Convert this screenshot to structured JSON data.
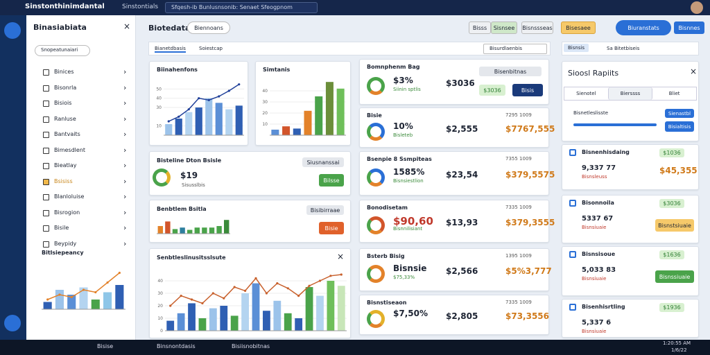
{
  "window": {
    "title": "Sinstonthinimdantal",
    "tab": "Sinstontials",
    "address": "Sfqesh-ib Bunlusnsonib: Senaet Sfeogpnom"
  },
  "sidebar": {
    "title": "Binasiabiata",
    "search": "Snopeatunaiari",
    "items": [
      "Binices",
      "Bisonrla",
      "Bisiois",
      "Ranluse",
      "Bantvaits",
      "Bimesdlent",
      "Bieatlay",
      "Bsisiss",
      "Blanloluise",
      "Bisrogion",
      "Bisile",
      "Beypidy"
    ],
    "chart_title": "Bitlsiepeancy"
  },
  "toolbar": {
    "title": "Biotedata",
    "button": "Biennoans",
    "actions": [
      "Bisss",
      "Sisnsee",
      "Bisnssseas",
      "Bisesaee",
      "Biuranstats",
      "Bisnnes"
    ]
  },
  "tabs": {
    "items": [
      "Bianetdbasis",
      "Soiestcap"
    ],
    "search": "Bisurdlaenbis"
  },
  "cards": {
    "trend": {
      "title": "Biinahenfons"
    },
    "stats": {
      "title": "Simtanis"
    },
    "baseline": {
      "title": "Bisteline Dton Bsisle",
      "value": "$19",
      "sub": "Sisusslbis",
      "button": "Siusnanssai",
      "action": "Bilsse"
    },
    "bench": {
      "title": "Benbtlem Bsitla",
      "button": "Bisibirraae",
      "action": "Bisie"
    },
    "series": {
      "title": "Senbtleslinusitsslsute"
    }
  },
  "rows": [
    {
      "name": "Bomnphenm Bag",
      "pct": "$3%",
      "sub": "Siinin sptlis",
      "tag": "Bisenbitnas",
      "amount": "$3036",
      "action": "Bisis"
    },
    {
      "name": "Bisie",
      "pct": "10%",
      "sub": "Bisleteb",
      "amount": "$2,555",
      "meta": "7295 1009",
      "total": "$7767,555"
    },
    {
      "name": "Bsenpie 8 Ssmpiteas",
      "pct": "1585%",
      "sub": "Bisnsiestlion",
      "amount": "$23,54",
      "meta": "7355 1009",
      "total": "$379,5575"
    },
    {
      "name": "Bonodisetam",
      "pct": "$90,60",
      "sub": "Bisnnilisiant",
      "amount": "$13,93",
      "meta": "7335 1009",
      "total": "$379,3555"
    },
    {
      "name": "Bsterb Bisig",
      "pct": "Bisnsie",
      "sub": "$75,33%",
      "amount": "$2,566",
      "meta": "1395 1009",
      "total": "$5%3,777"
    },
    {
      "name": "Bisnstiseaon",
      "pct": "$7,50%",
      "amount": "$2,805",
      "meta": "7335 1009",
      "total": "$73,3556"
    }
  ],
  "right": {
    "tabs": [
      "Bisnsis",
      "Sa Bitetbiseis"
    ],
    "panel_title": "Sioosl Rapiits",
    "panel_tabs": [
      "Sienotel",
      "Bierssss",
      "Bliet"
    ],
    "slider_label": "Bisnetleslisste",
    "buttons": [
      "Sienastbl",
      "Bisialtisis"
    ],
    "items": [
      {
        "name": "Bisnenhisdaing",
        "badge": "$1036",
        "value": "9,337 77",
        "sub": "Bisnsleuss",
        "total": "$45,355"
      },
      {
        "name": "Bisonnoila",
        "badge": "$3036",
        "value": "5337 67",
        "sub": "Bisnsiuaie",
        "action": "Bisnstsiuaie"
      },
      {
        "name": "Bisnsisoue",
        "badge": "$1636",
        "value": "5,033 83",
        "sub": "Bisnsiuaie",
        "action": "Bisnssiuaie"
      },
      {
        "name": "Bisenhisrtling",
        "badge": "$1936",
        "value": "5,337 6",
        "sub": "Bisnsiuaie"
      }
    ]
  },
  "taskbar": {
    "apps": [
      "Bisise",
      "Binsnontdasis",
      "Bisiisnobitnas"
    ],
    "time": "1:20:55 AM",
    "date": "1/6/22"
  },
  "charts": [
    {
      "type": "bar-line",
      "bars": [
        15,
        40,
        30,
        45,
        20,
        35,
        50
      ],
      "bar_colors": [
        "#2f5fb3",
        "#9cc3ea",
        "#5b8fd6",
        "#b4d4f0",
        "#4aa34a",
        "#8ec6e8",
        "#2f5fb3"
      ],
      "line": [
        20,
        30,
        25,
        40,
        35,
        55,
        75
      ],
      "line_color": "#e3822a",
      "ylim": [
        0,
        100
      ]
    },
    {
      "type": "bar-line",
      "bars": [
        12,
        18,
        25,
        30,
        40,
        35,
        28,
        32
      ],
      "bar_colors": [
        "#9cc3ea",
        "#2f5fb3",
        "#b4d4f0",
        "#2f5fb3",
        "#9cc3ea",
        "#5b8fd6",
        "#b4d4f0",
        "#2f5fb3"
      ],
      "line": [
        15,
        20,
        28,
        40,
        38,
        42,
        48,
        55
      ],
      "line_color": "#1f3f99",
      "ylim": [
        0,
        60
      ],
      "yticks": [
        10,
        30,
        40,
        50
      ]
    },
    {
      "type": "bar",
      "bars": [
        5,
        8,
        6,
        22,
        35,
        48,
        42
      ],
      "bar_colors": [
        "#5b8fd6",
        "#d2552b",
        "#2f5fb3",
        "#e3822a",
        "#4aa34a",
        "#6b8e3a",
        "#6fbf5a"
      ],
      "ylim": [
        0,
        50
      ],
      "yticks": [
        10,
        20,
        30,
        40
      ]
    },
    {
      "type": "bar",
      "bars": [
        10,
        16,
        6,
        8,
        5,
        8,
        8,
        8,
        10,
        18
      ],
      "bar_colors": [
        "#e3822a",
        "#d2552b",
        "#4aa34a",
        "#2e7f9e",
        "#4aa34a",
        "#4aa34a",
        "#4aa34a",
        "#4aa34a",
        "#4aa34a",
        "#3b8b3b"
      ],
      "ylim": [
        0,
        20
      ]
    },
    {
      "type": "bar-line",
      "bars": [
        8,
        14,
        22,
        10,
        18,
        20,
        12,
        30,
        38,
        16,
        24,
        14,
        10,
        35,
        28,
        40,
        36
      ],
      "bar_colors": [
        "#2f5fb3",
        "#5b8fd6",
        "#2f5fb3",
        "#4aa34a",
        "#9cc3ea",
        "#2f5fb3",
        "#4aa34a",
        "#b4d4f0",
        "#5b8fd6",
        "#2f5fb3",
        "#9cc3ea",
        "#4aa34a",
        "#2f5fb3",
        "#4aa34a",
        "#b4d4f0",
        "#6fbf5a",
        "#c8e6b8"
      ],
      "line": [
        20,
        28,
        25,
        22,
        30,
        26,
        35,
        32,
        42,
        30,
        38,
        34,
        28,
        36,
        40,
        44,
        45
      ],
      "line_color": "#c8602c",
      "ylim": [
        0,
        50
      ],
      "yticks": [
        0,
        10,
        20,
        30,
        40
      ]
    }
  ]
}
